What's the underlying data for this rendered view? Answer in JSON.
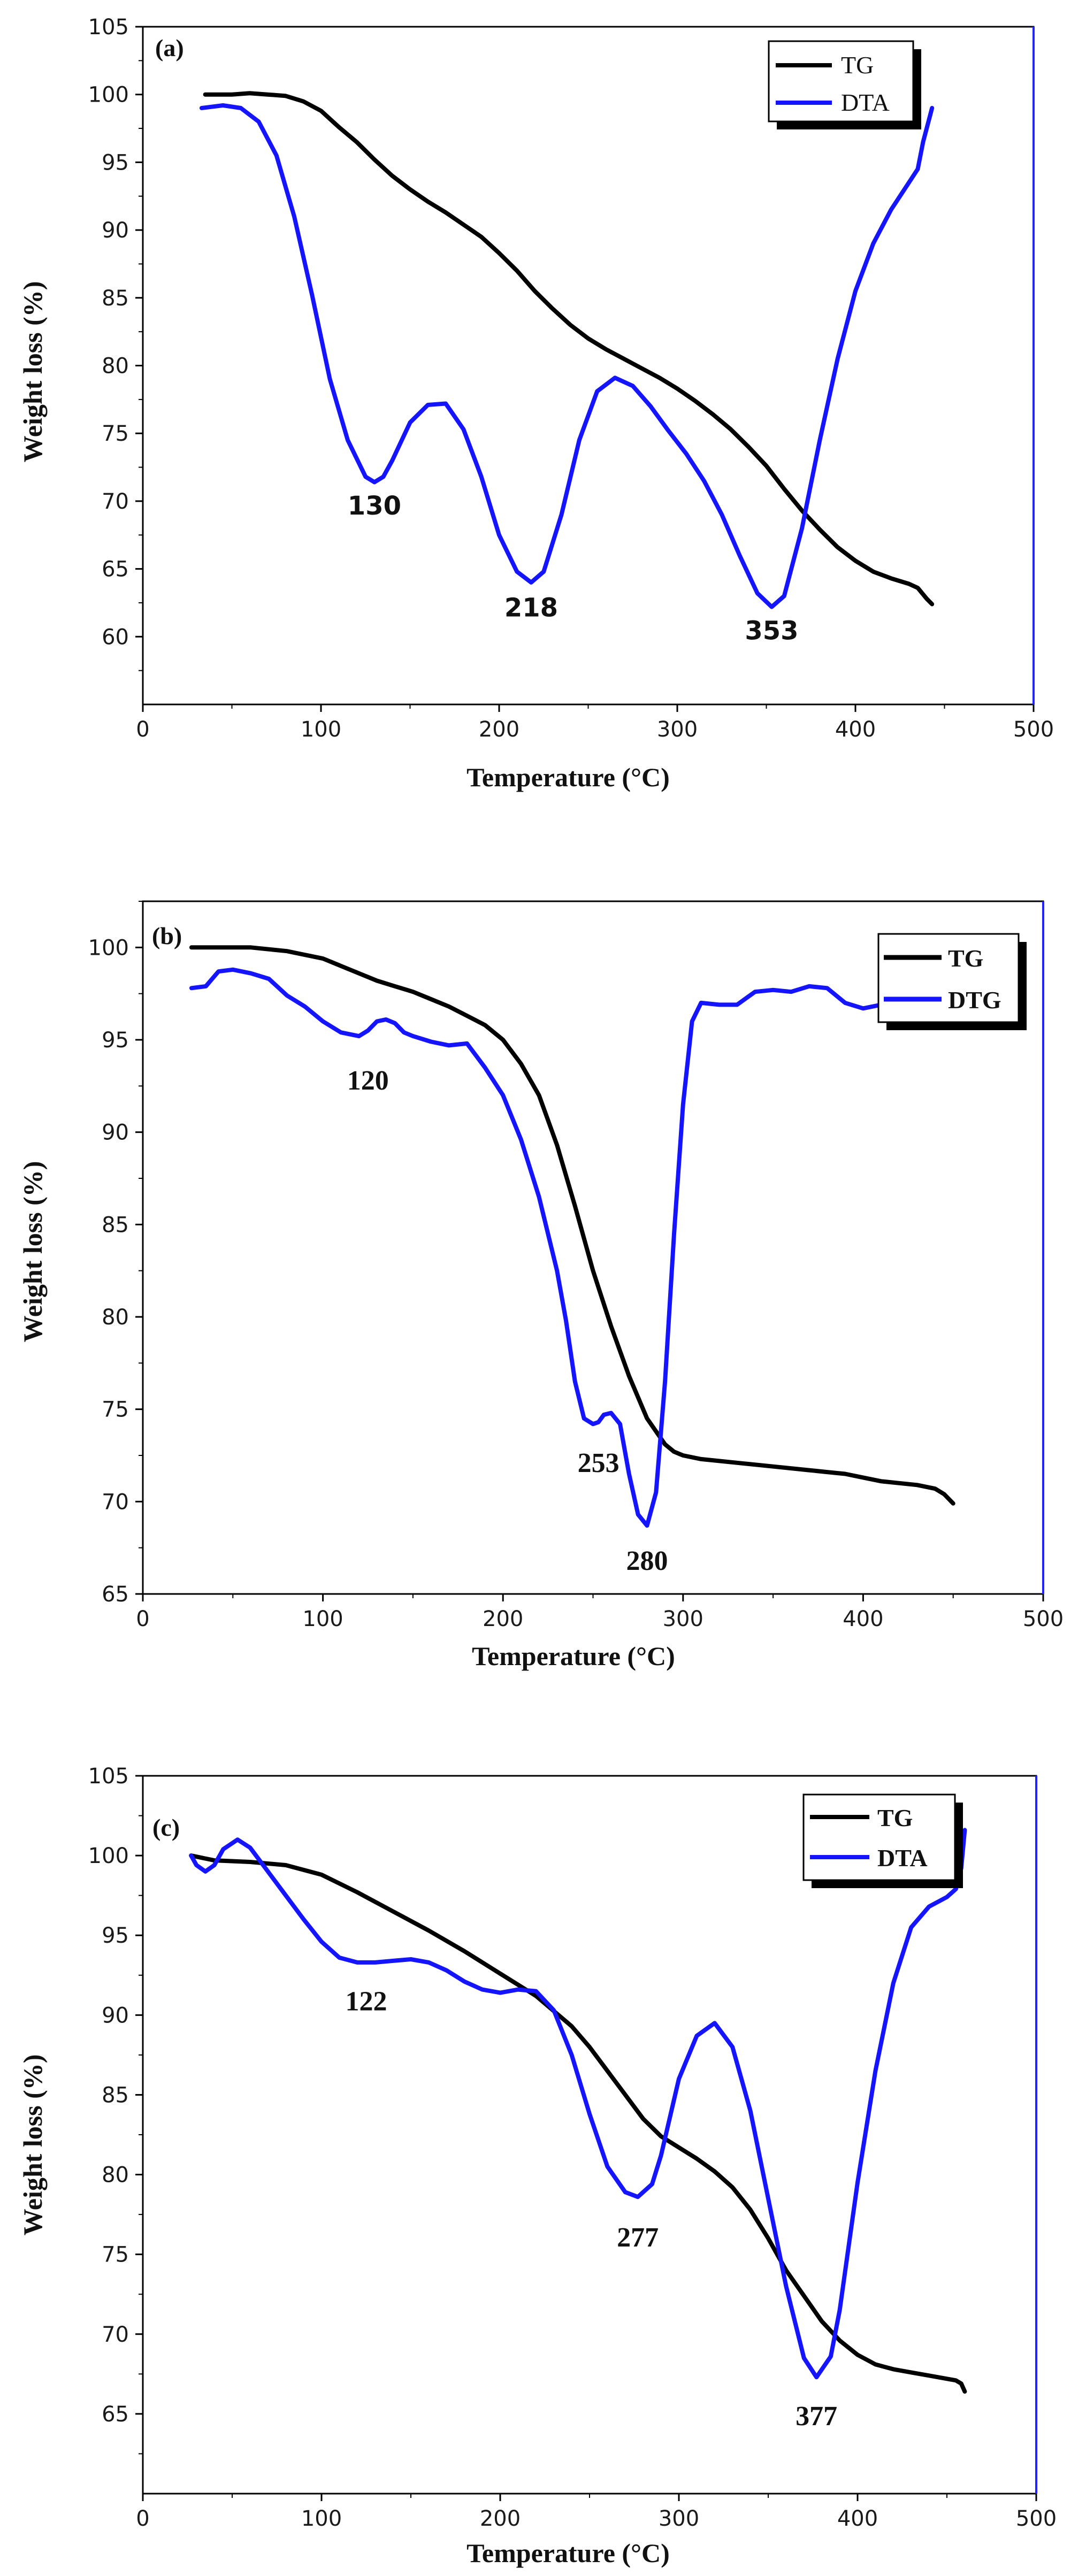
{
  "figure": {
    "colors": {
      "tg": "#000000",
      "dta": "#1414ff",
      "frame": "#000000",
      "right_axis": "#2323ff"
    }
  },
  "chart_data": [
    {
      "type": "line",
      "panel_label": "(a)",
      "xlabel": "Temperature (°C)",
      "ylabel": "Weight loss (%)",
      "xlim": [
        0,
        500
      ],
      "ylim": [
        55,
        105
      ],
      "xticks": [
        "0",
        "100",
        "200",
        "300",
        "400",
        "500"
      ],
      "yticks": [
        "60",
        "65",
        "70",
        "75",
        "80",
        "85",
        "90",
        "95",
        "100",
        "105"
      ],
      "legend": [
        "TG",
        "DTA"
      ],
      "legend_bold": false,
      "series": [
        {
          "name": "TG",
          "x": [
            35,
            50,
            60,
            70,
            80,
            90,
            100,
            110,
            120,
            130,
            140,
            150,
            160,
            170,
            180,
            190,
            200,
            210,
            220,
            230,
            240,
            250,
            260,
            270,
            280,
            290,
            300,
            310,
            320,
            330,
            340,
            350,
            360,
            370,
            380,
            390,
            400,
            410,
            420,
            430,
            435,
            440,
            443
          ],
          "y": [
            100,
            100,
            100.1,
            100,
            99.9,
            99.5,
            98.8,
            97.6,
            96.5,
            95.2,
            94,
            93,
            92.1,
            91.3,
            90.4,
            89.5,
            88.3,
            87,
            85.5,
            84.2,
            83,
            82,
            81.2,
            80.5,
            79.8,
            79.1,
            78.3,
            77.4,
            76.4,
            75.3,
            74,
            72.6,
            70.9,
            69.3,
            67.9,
            66.6,
            65.6,
            64.8,
            64.3,
            63.9,
            63.6,
            62.8,
            62.4
          ]
        },
        {
          "name": "DTA",
          "x": [
            33,
            45,
            55,
            65,
            75,
            85,
            95,
            105,
            115,
            125,
            130,
            135,
            140,
            150,
            160,
            170,
            180,
            190,
            200,
            210,
            218,
            225,
            235,
            245,
            255,
            265,
            275,
            285,
            295,
            305,
            315,
            325,
            335,
            345,
            353,
            360,
            370,
            380,
            390,
            400,
            410,
            420,
            430,
            435,
            438,
            440,
            442,
            443
          ],
          "y": [
            99,
            99.2,
            99,
            98,
            95.5,
            91,
            85.2,
            79,
            74.5,
            71.8,
            71.4,
            71.8,
            73,
            75.8,
            77.1,
            77.2,
            75.3,
            71.8,
            67.5,
            64.8,
            64,
            64.8,
            69,
            74.5,
            78.1,
            79.1,
            78.5,
            77,
            75.2,
            73.5,
            71.5,
            69,
            66,
            63.2,
            62.2,
            63,
            68,
            74.5,
            80.5,
            85.5,
            89,
            91.5,
            93.5,
            94.5,
            96.5,
            97.5,
            98.5,
            99
          ]
        }
      ],
      "annotations": [
        {
          "text": "130",
          "x": 130,
          "y": 69.0
        },
        {
          "text": "218",
          "x": 218,
          "y": 61.5
        },
        {
          "text": "353",
          "x": 353,
          "y": 59.8
        }
      ]
    },
    {
      "type": "line",
      "panel_label": "(b)",
      "xlabel": "Temperature (°C)",
      "ylabel": "Weight loss (%)",
      "xlim": [
        0,
        500
      ],
      "ylim": [
        65,
        102.5
      ],
      "xticks": [
        "0",
        "100",
        "200",
        "300",
        "400",
        "500"
      ],
      "yticks": [
        "65",
        "70",
        "75",
        "80",
        "85",
        "90",
        "95",
        "100"
      ],
      "legend": [
        "TG",
        "DTG"
      ],
      "legend_bold": true,
      "series": [
        {
          "name": "TG",
          "x": [
            27,
            40,
            60,
            80,
            100,
            110,
            120,
            130,
            140,
            150,
            160,
            170,
            180,
            190,
            200,
            210,
            220,
            230,
            240,
            250,
            260,
            270,
            280,
            290,
            295,
            300,
            310,
            330,
            350,
            370,
            380,
            390,
            400,
            410,
            420,
            430,
            440,
            445,
            448,
            450
          ],
          "y": [
            100,
            100,
            100,
            99.8,
            99.4,
            99,
            98.6,
            98.2,
            97.9,
            97.6,
            97.2,
            96.8,
            96.3,
            95.8,
            95,
            93.7,
            92,
            89.3,
            86,
            82.5,
            79.5,
            76.8,
            74.5,
            73.1,
            72.7,
            72.5,
            72.3,
            72.1,
            71.9,
            71.7,
            71.6,
            71.5,
            71.3,
            71.1,
            71,
            70.9,
            70.7,
            70.4,
            70.1,
            69.9
          ]
        },
        {
          "name": "DTG",
          "x": [
            27,
            35,
            42,
            50,
            60,
            70,
            80,
            90,
            100,
            110,
            120,
            125,
            130,
            135,
            140,
            145,
            150,
            160,
            170,
            180,
            190,
            200,
            210,
            220,
            230,
            235,
            240,
            245,
            250,
            253,
            256,
            260,
            265,
            270,
            275,
            280,
            285,
            290,
            295,
            300,
            305,
            310,
            320,
            330,
            340,
            350,
            360,
            370,
            380,
            390,
            400,
            410,
            420,
            430,
            440
          ],
          "y": [
            97.8,
            97.9,
            98.7,
            98.8,
            98.6,
            98.3,
            97.4,
            96.8,
            96,
            95.4,
            95.2,
            95.5,
            96,
            96.1,
            95.9,
            95.4,
            95.2,
            94.9,
            94.7,
            94.8,
            93.5,
            92,
            89.6,
            86.5,
            82.5,
            79.8,
            76.5,
            74.5,
            74.2,
            74.3,
            74.7,
            74.8,
            74.2,
            71.5,
            69.3,
            68.7,
            70.5,
            76.5,
            84.5,
            91.5,
            96,
            97,
            96.9,
            96.9,
            97.6,
            97.7,
            97.6,
            97.9,
            97.8,
            97,
            96.7,
            96.9,
            96.9,
            97.1,
            97.3
          ]
        }
      ],
      "annotations": [
        {
          "text": "120",
          "x": 125,
          "y": 92.3
        },
        {
          "text": "253",
          "x": 253,
          "y": 71.6
        },
        {
          "text": "280",
          "x": 280,
          "y": 66.3
        }
      ]
    },
    {
      "type": "line",
      "panel_label": "(c)",
      "xlabel": "Temperature (°C)",
      "ylabel": "Weight loss (%)",
      "xlim": [
        0,
        500
      ],
      "ylim": [
        60,
        105
      ],
      "xticks": [
        "0",
        "100",
        "200",
        "300",
        "400",
        "500"
      ],
      "yticks": [
        "65",
        "70",
        "75",
        "80",
        "85",
        "90",
        "95",
        "100",
        "105"
      ],
      "legend": [
        "TG",
        "DTA"
      ],
      "legend_bold": true,
      "series": [
        {
          "name": "TG",
          "x": [
            27,
            40,
            60,
            80,
            100,
            120,
            140,
            160,
            180,
            200,
            220,
            240,
            250,
            260,
            270,
            280,
            290,
            300,
            310,
            320,
            330,
            340,
            350,
            360,
            370,
            380,
            390,
            400,
            410,
            420,
            430,
            440,
            450,
            455,
            458,
            460
          ],
          "y": [
            100,
            99.7,
            99.6,
            99.4,
            98.8,
            97.7,
            96.5,
            95.3,
            94,
            92.6,
            91.2,
            89.3,
            88,
            86.5,
            85,
            83.5,
            82.4,
            81.7,
            81,
            80.2,
            79.2,
            77.8,
            76,
            74,
            72.4,
            70.8,
            69.6,
            68.7,
            68.1,
            67.8,
            67.6,
            67.4,
            67.2,
            67.1,
            66.9,
            66.4
          ]
        },
        {
          "name": "DTA",
          "x": [
            27,
            30,
            35,
            40,
            45,
            53,
            60,
            70,
            80,
            90,
            100,
            110,
            120,
            130,
            140,
            150,
            160,
            170,
            180,
            190,
            200,
            210,
            220,
            230,
            240,
            250,
            260,
            270,
            277,
            285,
            290,
            300,
            310,
            320,
            330,
            340,
            350,
            360,
            370,
            377,
            385,
            390,
            400,
            410,
            420,
            430,
            440,
            450,
            455,
            458,
            460
          ],
          "y": [
            100,
            99.4,
            99,
            99.4,
            100.4,
            101,
            100.5,
            99,
            97.5,
            96,
            94.6,
            93.6,
            93.3,
            93.3,
            93.4,
            93.5,
            93.3,
            92.8,
            92.1,
            91.6,
            91.4,
            91.6,
            91.5,
            90.3,
            87.5,
            83.8,
            80.5,
            78.9,
            78.6,
            79.4,
            81.2,
            86,
            88.7,
            89.5,
            88,
            84,
            78.5,
            73,
            68.5,
            67.3,
            68.6,
            71.5,
            79.5,
            86.5,
            92,
            95.5,
            96.8,
            97.4,
            97.9,
            99.2,
            101.6
          ]
        }
      ],
      "annotations": [
        {
          "text": "122",
          "x": 125,
          "y": 90.3
        },
        {
          "text": "277",
          "x": 277,
          "y": 75.5
        },
        {
          "text": "377",
          "x": 377,
          "y": 64.3
        }
      ]
    }
  ]
}
